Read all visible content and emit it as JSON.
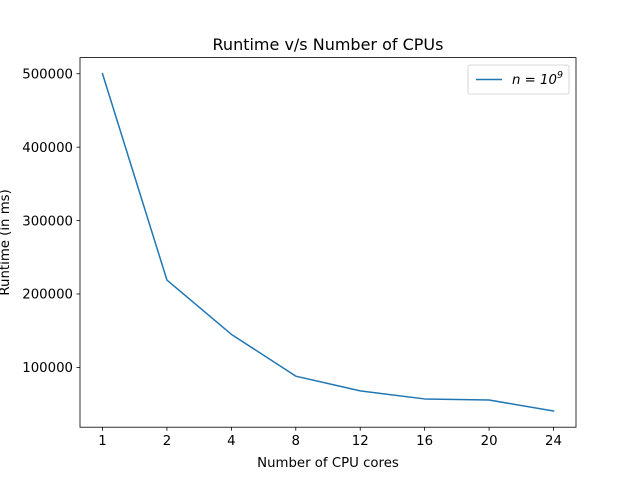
{
  "chart_data": {
    "type": "line",
    "title": "Runtime v/s Number of CPUs",
    "xlabel": "Number of CPU cores",
    "ylabel": "Runtime (in ms)",
    "categories": [
      "1",
      "2",
      "4",
      "8",
      "12",
      "16",
      "20",
      "24"
    ],
    "series": [
      {
        "name": "n = 10^9",
        "legend_base": "n = 10",
        "legend_exponent": "9",
        "color": "#1f77b4",
        "values": [
          500000,
          219000,
          145000,
          88000,
          68000,
          57000,
          55500,
          40500
        ]
      }
    ],
    "yticks": [
      100000,
      200000,
      300000,
      400000,
      500000
    ],
    "ylim": [
      18500,
      522000
    ],
    "grid": false,
    "legend_position": "top-right"
  }
}
